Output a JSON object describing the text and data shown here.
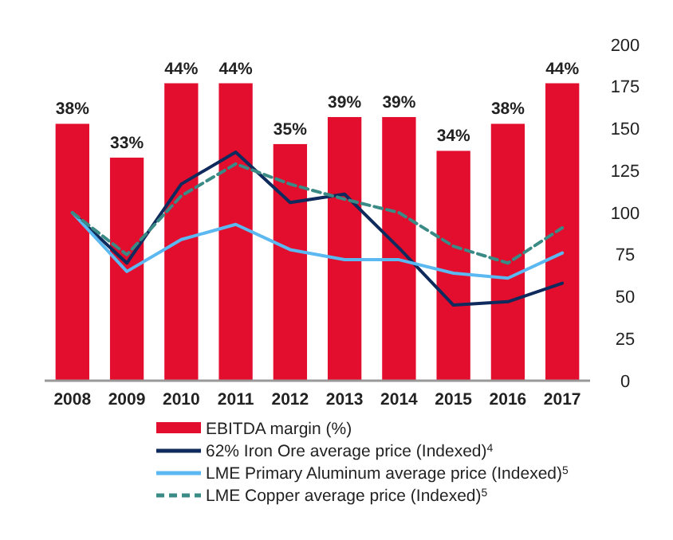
{
  "chart_data": {
    "type": "bar",
    "categories": [
      "2008",
      "2009",
      "2010",
      "2011",
      "2012",
      "2013",
      "2014",
      "2015",
      "2016",
      "2017"
    ],
    "series": [
      {
        "name": "EBITDA margin (%)",
        "axis": "y2",
        "color": "#e30d2e",
        "values": [
          38,
          33,
          44,
          44,
          35,
          39,
          39,
          34,
          38,
          44
        ],
        "value_labels": [
          "38%",
          "33%",
          "44%",
          "44%",
          "35%",
          "39%",
          "39%",
          "34%",
          "38%",
          "44%"
        ]
      },
      {
        "name": "62% Iron Ore average price (Indexed)$^{4}$",
        "type": "line",
        "color": "#0f2a5c",
        "line_style": "solid",
        "values": [
          100,
          70,
          117,
          136,
          106,
          111,
          79,
          45,
          47,
          58
        ]
      },
      {
        "name": "LME Primary Aluminum average price (Indexed)$^{5}$",
        "type": "line",
        "color": "#5bb8f0",
        "line_style": "solid",
        "values": [
          100,
          65,
          84,
          93,
          78,
          72,
          72,
          64,
          61,
          76
        ]
      },
      {
        "name": "LME Copper average price (Indexed)$^{5}$",
        "type": "line",
        "color": "#3a8a86",
        "line_style": "dashed",
        "values": [
          100,
          75,
          110,
          129,
          117,
          108,
          100,
          80,
          70,
          91
        ]
      }
    ],
    "ylim": [
      0,
      200
    ],
    "yticks": [
      0,
      25,
      50,
      75,
      100,
      125,
      150,
      175,
      200
    ],
    "grid": false,
    "legend": "bottom",
    "marker": "none"
  }
}
